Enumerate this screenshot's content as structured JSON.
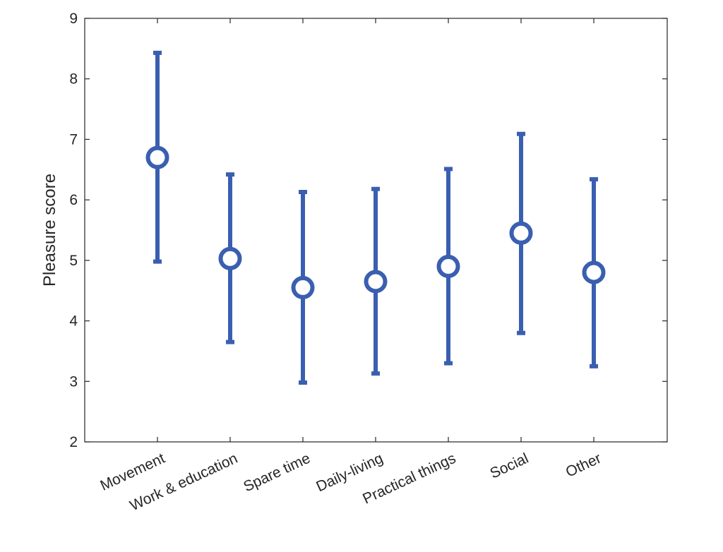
{
  "chart_data": {
    "type": "errorbar",
    "title": "",
    "xlabel": "",
    "ylabel": "Pleasure score",
    "ylim": [
      2,
      9
    ],
    "yticks": [
      2,
      3,
      4,
      5,
      6,
      7,
      8,
      9
    ],
    "grid": false,
    "categories": [
      "Movement",
      "Work & education",
      "Spare time",
      "Daily-living",
      "Practical things",
      "Social",
      "Other"
    ],
    "values": [
      6.7,
      5.03,
      4.55,
      4.65,
      4.9,
      5.45,
      4.8
    ],
    "lower": [
      4.98,
      3.65,
      2.98,
      3.13,
      3.3,
      3.8,
      3.25
    ],
    "upper": [
      8.43,
      6.42,
      6.13,
      6.18,
      6.51,
      7.09,
      6.34
    ],
    "color": "#3a5fb0"
  }
}
